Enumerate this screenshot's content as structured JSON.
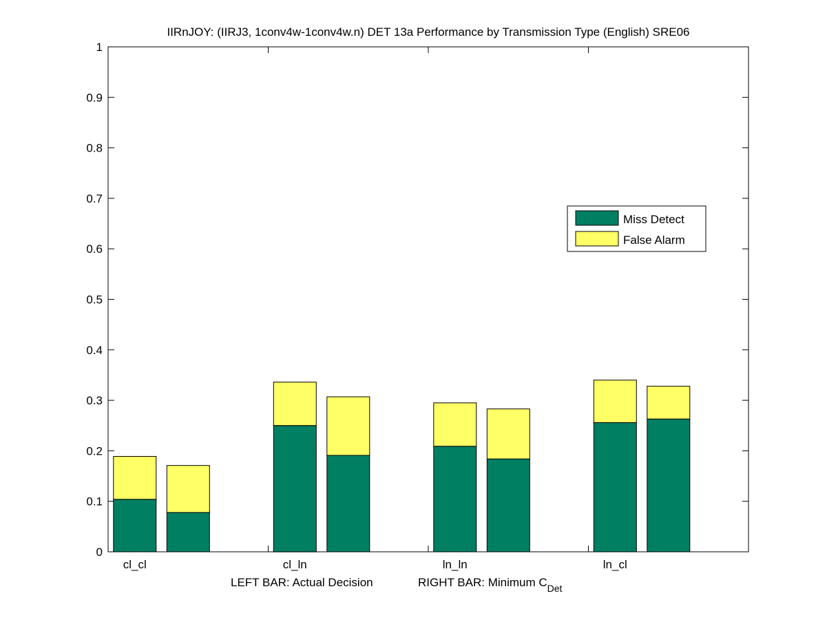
{
  "chart_data": {
    "type": "bar",
    "stacked": true,
    "title": "IIRnJOY: (IIRJ3, 1conv4w-1conv4w.n) DET 13a Performance by Transmission Type (English) SRE06",
    "xlabel": {
      "left": "LEFT BAR: Actual Decision",
      "right_prefix": "RIGHT BAR: Minimum C",
      "right_subscript": "Det"
    },
    "ylabel": "",
    "ylim": [
      0,
      1
    ],
    "yticks": [
      "0",
      "0.1",
      "0.2",
      "0.3",
      "0.4",
      "0.5",
      "0.6",
      "0.7",
      "0.8",
      "0.9",
      "1"
    ],
    "categories": [
      "cl_cl",
      "cl_ln",
      "ln_ln",
      "ln_cl"
    ],
    "bars_per_category": [
      "Actual Decision",
      "Minimum C_Det"
    ],
    "series": [
      {
        "name": "Miss Detect",
        "color": "#007f63",
        "values": [
          [
            0.104,
            0.078
          ],
          [
            0.25,
            0.191
          ],
          [
            0.209,
            0.184
          ],
          [
            0.256,
            0.263
          ]
        ]
      },
      {
        "name": "False Alarm",
        "color": "#ffff66",
        "values": [
          [
            0.085,
            0.093
          ],
          [
            0.086,
            0.116
          ],
          [
            0.086,
            0.099
          ],
          [
            0.084,
            0.065
          ]
        ]
      }
    ],
    "legend": {
      "placement": "right",
      "entries": [
        "Miss Detect",
        "False Alarm"
      ]
    },
    "grid": false
  }
}
